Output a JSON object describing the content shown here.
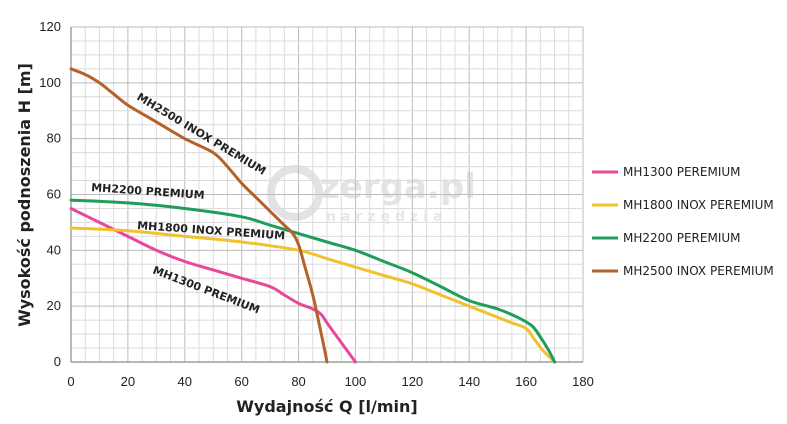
{
  "chart_data": {
    "type": "line",
    "xlabel": "Wydajność Q [l/min]",
    "ylabel": "Wysokość podnoszenia H [m]",
    "xlim": [
      0,
      180
    ],
    "ylim": [
      0,
      120
    ],
    "xticks": [
      "0",
      "20",
      "40",
      "60",
      "80",
      "100",
      "120",
      "140",
      "160",
      "180"
    ],
    "yticks": [
      "0",
      "20",
      "40",
      "60",
      "80",
      "100",
      "120"
    ],
    "grid": true,
    "legend_placement": "right",
    "series": [
      {
        "name": "MH1300 PEREMIUM",
        "curve_label": "MH1300 PREMIUM",
        "color": "#e8489a",
        "x": [
          0,
          10,
          20,
          30,
          40,
          50,
          60,
          70,
          75,
          80,
          85,
          88,
          90,
          95,
          100
        ],
        "y": [
          55,
          50,
          45,
          40,
          36,
          33,
          30,
          27,
          24,
          21,
          19,
          17,
          14,
          7,
          0
        ]
      },
      {
        "name": "MH1800 INOX PEREMIUM",
        "curve_label": "MH1800 INOX PREMIUM",
        "color": "#f2c12e",
        "x": [
          0,
          20,
          40,
          60,
          80,
          90,
          100,
          110,
          120,
          130,
          140,
          150,
          155,
          160,
          163,
          166,
          170
        ],
        "y": [
          48,
          47,
          45,
          43,
          40,
          37,
          34,
          31,
          28,
          24,
          20,
          16,
          14,
          12,
          8,
          4,
          0
        ]
      },
      {
        "name": "MH2200 PEREMIUM",
        "curve_label": "MH2200 PREMIUM",
        "color": "#1e9e5a",
        "x": [
          0,
          20,
          40,
          60,
          70,
          80,
          90,
          100,
          110,
          120,
          130,
          140,
          150,
          157,
          162,
          165,
          168,
          170
        ],
        "y": [
          58,
          57,
          55,
          52,
          49,
          46,
          43,
          40,
          36,
          32,
          27,
          22,
          19,
          16,
          13,
          9,
          4,
          0
        ]
      },
      {
        "name": "MH2500 INOX PEREMIUM",
        "curve_label": "MH2500 INOX PREMIUM",
        "color": "#b3622c",
        "x": [
          0,
          5,
          10,
          15,
          20,
          30,
          40,
          50,
          55,
          60,
          65,
          70,
          75,
          78,
          80,
          82,
          85,
          88,
          90
        ],
        "y": [
          105,
          103,
          100,
          96,
          92,
          86,
          80,
          75,
          70,
          64,
          59,
          54,
          49,
          46,
          42,
          35,
          24,
          10,
          0
        ]
      }
    ]
  },
  "watermark": {
    "main": "zerga.pl",
    "sub": "narzędzia"
  }
}
